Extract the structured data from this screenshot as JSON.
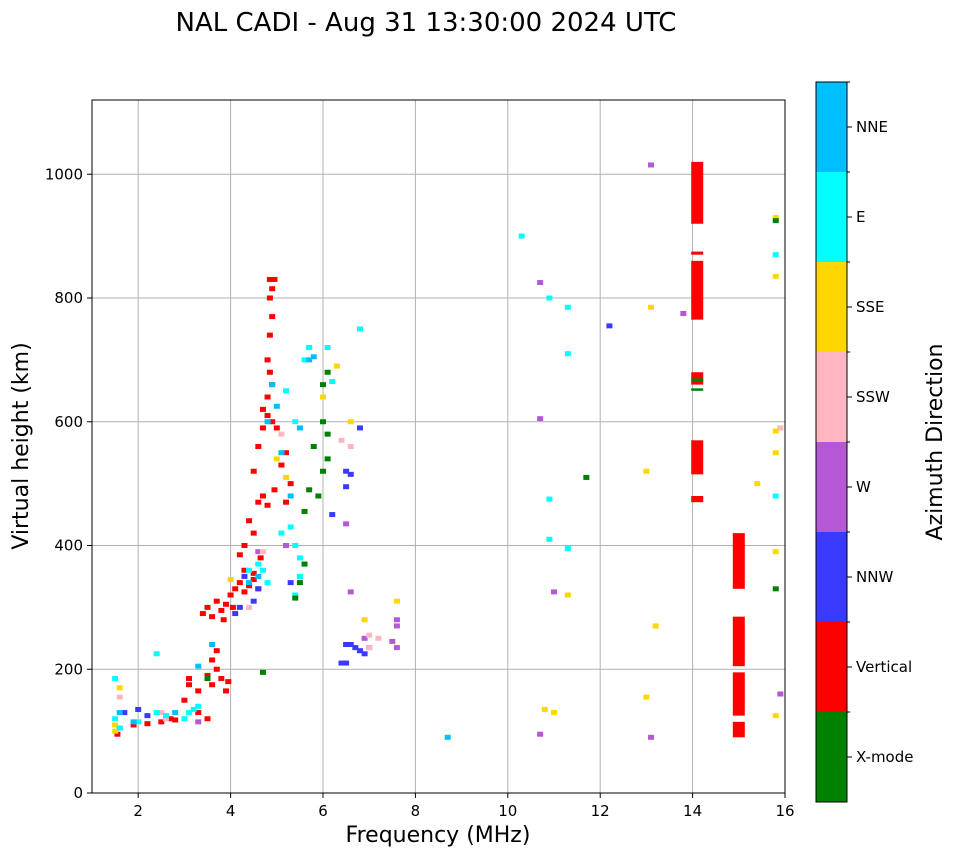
{
  "chart_data": {
    "type": "scatter",
    "title": "NAL CADI - Aug 31 13:30:00 2024 UTC",
    "xlabel": "Frequency (MHz)",
    "ylabel": "Virtual height (km)",
    "xlim": [
      1,
      16
    ],
    "ylim": [
      0,
      1120
    ],
    "xticks": [
      2,
      4,
      6,
      8,
      10,
      12,
      14,
      16
    ],
    "yticks": [
      0,
      200,
      400,
      600,
      800,
      1000
    ],
    "grid": true,
    "colorbar": {
      "label": "Azimuth Direction",
      "categories": [
        {
          "name": "X-mode",
          "color": "#008000"
        },
        {
          "name": "Vertical",
          "color": "#ff0000"
        },
        {
          "name": "NNW",
          "color": "#3a3aff"
        },
        {
          "name": "W",
          "color": "#b558d6"
        },
        {
          "name": "SSW",
          "color": "#ffb6c1"
        },
        {
          "name": "SSE",
          "color": "#ffd700"
        },
        {
          "name": "E",
          "color": "#00ffff"
        },
        {
          "name": "NNE",
          "color": "#00bfff"
        }
      ]
    },
    "bands": [
      {
        "category": "Vertical",
        "freq": 14.1,
        "heights": [
          [
            920,
            1020
          ],
          [
            765,
            860
          ],
          [
            515,
            570
          ],
          [
            470,
            480
          ],
          [
            660,
            680
          ]
        ]
      },
      {
        "category": "X-mode",
        "freq": 14.1,
        "heights": [
          [
            650,
            654
          ],
          [
            665,
            670
          ]
        ]
      },
      {
        "category": "Vertical",
        "freq": 15.0,
        "heights": [
          [
            330,
            420
          ],
          [
            205,
            285
          ],
          [
            125,
            195
          ],
          [
            90,
            115
          ]
        ]
      },
      {
        "category": "Vertical",
        "freq": 14.1,
        "heights": [
          [
            870,
            875
          ]
        ]
      }
    ],
    "series": [
      {
        "name": "Vertical",
        "points": [
          [
            1.55,
            95
          ],
          [
            1.6,
            105
          ],
          [
            1.9,
            110
          ],
          [
            2.2,
            112
          ],
          [
            2.8,
            118
          ],
          [
            3.0,
            150
          ],
          [
            3.1,
            175
          ],
          [
            3.1,
            185
          ],
          [
            3.3,
            165
          ],
          [
            3.5,
            190
          ],
          [
            3.6,
            175
          ],
          [
            3.7,
            200
          ],
          [
            3.8,
            185
          ],
          [
            3.9,
            165
          ],
          [
            3.95,
            180
          ],
          [
            3.7,
            230
          ],
          [
            3.6,
            215
          ],
          [
            3.4,
            290
          ],
          [
            3.5,
            300
          ],
          [
            3.6,
            285
          ],
          [
            3.7,
            310
          ],
          [
            3.8,
            295
          ],
          [
            3.85,
            280
          ],
          [
            3.9,
            305
          ],
          [
            4.0,
            320
          ],
          [
            4.05,
            300
          ],
          [
            4.1,
            330
          ],
          [
            4.2,
            340
          ],
          [
            4.3,
            325
          ],
          [
            4.4,
            335
          ],
          [
            4.5,
            345
          ],
          [
            4.6,
            330
          ],
          [
            4.2,
            385
          ],
          [
            4.3,
            400
          ],
          [
            4.5,
            420
          ],
          [
            4.6,
            470
          ],
          [
            4.7,
            480
          ],
          [
            4.8,
            465
          ],
          [
            4.4,
            440
          ],
          [
            4.5,
            520
          ],
          [
            4.6,
            560
          ],
          [
            4.7,
            590
          ],
          [
            4.8,
            610
          ],
          [
            4.9,
            600
          ],
          [
            4.7,
            620
          ],
          [
            4.8,
            640
          ],
          [
            4.9,
            660
          ],
          [
            4.85,
            680
          ],
          [
            4.8,
            700
          ],
          [
            4.85,
            740
          ],
          [
            4.9,
            770
          ],
          [
            4.85,
            800
          ],
          [
            4.9,
            815
          ],
          [
            4.85,
            830
          ],
          [
            4.95,
            830
          ],
          [
            5.0,
            590
          ],
          [
            5.1,
            530
          ],
          [
            5.2,
            550
          ],
          [
            4.95,
            490
          ],
          [
            5.3,
            500
          ],
          [
            5.2,
            470
          ],
          [
            4.65,
            380
          ],
          [
            4.3,
            360
          ],
          [
            4.5,
            355
          ],
          [
            3.3,
            130
          ],
          [
            3.5,
            120
          ],
          [
            2.5,
            115
          ],
          [
            2.7,
            120
          ]
        ]
      },
      {
        "name": "NNW",
        "points": [
          [
            1.7,
            130
          ],
          [
            2.0,
            135
          ],
          [
            2.2,
            125
          ],
          [
            4.1,
            290
          ],
          [
            4.2,
            300
          ],
          [
            4.5,
            310
          ],
          [
            4.3,
            350
          ],
          [
            4.6,
            330
          ],
          [
            5.3,
            340
          ],
          [
            6.4,
            210
          ],
          [
            6.5,
            210
          ],
          [
            6.5,
            240
          ],
          [
            6.6,
            240
          ],
          [
            6.7,
            235
          ],
          [
            6.8,
            230
          ],
          [
            6.9,
            225
          ],
          [
            6.5,
            495
          ],
          [
            6.5,
            520
          ],
          [
            6.6,
            515
          ],
          [
            6.8,
            590
          ],
          [
            6.2,
            450
          ],
          [
            12.2,
            755
          ]
        ]
      },
      {
        "name": "W",
        "points": [
          [
            3.3,
            115
          ],
          [
            4.6,
            390
          ],
          [
            5.2,
            400
          ],
          [
            6.6,
            325
          ],
          [
            6.5,
            435
          ],
          [
            6.9,
            250
          ],
          [
            7.0,
            235
          ],
          [
            7.6,
            280
          ],
          [
            7.6,
            270
          ],
          [
            7.5,
            245
          ],
          [
            7.6,
            235
          ],
          [
            10.7,
            605
          ],
          [
            10.7,
            825
          ],
          [
            10.7,
            95
          ],
          [
            11.0,
            325
          ],
          [
            13.1,
            90
          ],
          [
            13.1,
            1015
          ],
          [
            13.8,
            775
          ],
          [
            15.9,
            160
          ]
        ]
      },
      {
        "name": "SSW",
        "points": [
          [
            1.6,
            155
          ],
          [
            2.5,
            130
          ],
          [
            2.6,
            120
          ],
          [
            4.4,
            300
          ],
          [
            4.7,
            390
          ],
          [
            5.1,
            580
          ],
          [
            6.4,
            570
          ],
          [
            6.6,
            560
          ],
          [
            7.0,
            235
          ],
          [
            7.0,
            255
          ],
          [
            7.2,
            250
          ],
          [
            15.9,
            590
          ]
        ]
      },
      {
        "name": "SSE",
        "points": [
          [
            1.5,
            100
          ],
          [
            1.5,
            110
          ],
          [
            1.6,
            170
          ],
          [
            4.0,
            345
          ],
          [
            5.0,
            540
          ],
          [
            5.2,
            510
          ],
          [
            6.0,
            640
          ],
          [
            6.3,
            690
          ],
          [
            6.6,
            600
          ],
          [
            6.9,
            280
          ],
          [
            7.6,
            310
          ],
          [
            10.8,
            135
          ],
          [
            11.0,
            130
          ],
          [
            11.3,
            320
          ],
          [
            13.0,
            520
          ],
          [
            13.1,
            785
          ],
          [
            13.2,
            270
          ],
          [
            13.0,
            155
          ],
          [
            15.4,
            500
          ],
          [
            15.8,
            125
          ],
          [
            15.8,
            390
          ],
          [
            15.8,
            550
          ],
          [
            15.8,
            585
          ],
          [
            15.8,
            835
          ],
          [
            15.8,
            930
          ]
        ]
      },
      {
        "name": "E",
        "points": [
          [
            1.5,
            185
          ],
          [
            1.5,
            120
          ],
          [
            1.6,
            105
          ],
          [
            2.0,
            115
          ],
          [
            2.4,
            225
          ],
          [
            2.4,
            130
          ],
          [
            2.6,
            125
          ],
          [
            3.0,
            120
          ],
          [
            3.1,
            130
          ],
          [
            3.2,
            135
          ],
          [
            3.3,
            140
          ],
          [
            4.4,
            360
          ],
          [
            4.6,
            370
          ],
          [
            4.7,
            360
          ],
          [
            4.8,
            340
          ],
          [
            5.1,
            420
          ],
          [
            5.3,
            430
          ],
          [
            5.4,
            400
          ],
          [
            5.5,
            380
          ],
          [
            5.5,
            350
          ],
          [
            5.4,
            320
          ],
          [
            5.2,
            650
          ],
          [
            5.4,
            600
          ],
          [
            5.6,
            700
          ],
          [
            5.7,
            720
          ],
          [
            6.1,
            720
          ],
          [
            6.2,
            665
          ],
          [
            6.8,
            750
          ],
          [
            10.3,
            900
          ],
          [
            10.9,
            800
          ],
          [
            10.9,
            475
          ],
          [
            10.9,
            410
          ],
          [
            11.3,
            785
          ],
          [
            11.3,
            710
          ],
          [
            11.3,
            395
          ],
          [
            15.8,
            870
          ],
          [
            15.8,
            480
          ]
        ]
      },
      {
        "name": "NNE",
        "points": [
          [
            1.6,
            130
          ],
          [
            1.9,
            115
          ],
          [
            2.8,
            130
          ],
          [
            3.3,
            205
          ],
          [
            3.6,
            240
          ],
          [
            4.4,
            340
          ],
          [
            4.6,
            350
          ],
          [
            4.8,
            600
          ],
          [
            4.9,
            660
          ],
          [
            5.0,
            625
          ],
          [
            5.1,
            550
          ],
          [
            5.3,
            480
          ],
          [
            5.5,
            590
          ],
          [
            5.7,
            700
          ],
          [
            5.8,
            705
          ],
          [
            8.7,
            90
          ],
          [
            15.0,
            380
          ]
        ]
      },
      {
        "name": "X-mode",
        "points": [
          [
            3.5,
            185
          ],
          [
            4.7,
            195
          ],
          [
            5.4,
            315
          ],
          [
            5.5,
            340
          ],
          [
            5.6,
            370
          ],
          [
            5.7,
            490
          ],
          [
            5.8,
            560
          ],
          [
            6.0,
            600
          ],
          [
            6.0,
            660
          ],
          [
            6.0,
            520
          ],
          [
            6.1,
            580
          ],
          [
            6.1,
            540
          ],
          [
            5.9,
            480
          ],
          [
            5.6,
            455
          ],
          [
            6.1,
            680
          ],
          [
            11.7,
            510
          ],
          [
            15.8,
            925
          ],
          [
            15.8,
            330
          ]
        ]
      }
    ]
  }
}
